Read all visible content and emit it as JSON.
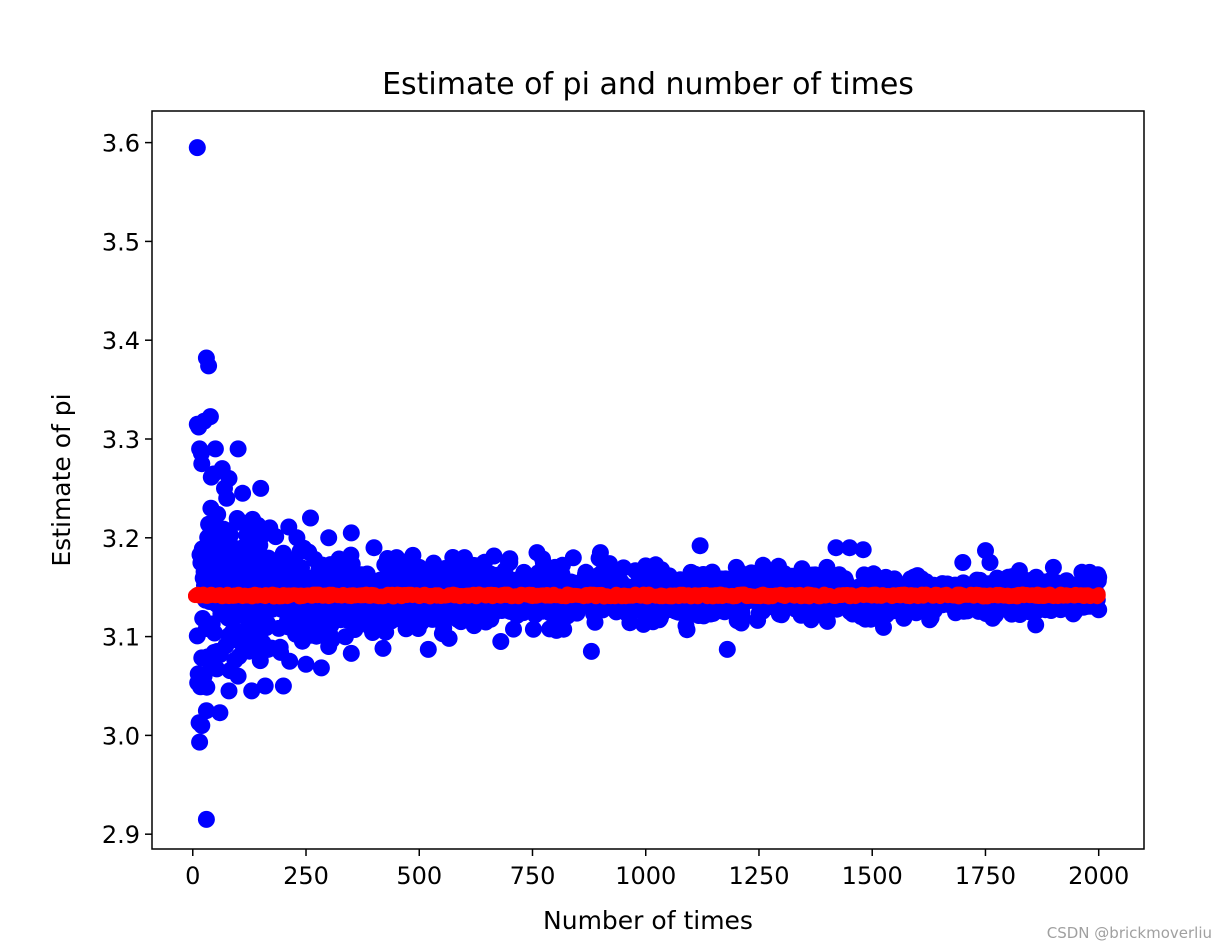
{
  "chart_data": {
    "type": "scatter",
    "title": "Estimate of pi and number of times",
    "xlabel": "Number of times",
    "ylabel": "Estimate of pi",
    "xlim": [
      -90,
      2100
    ],
    "ylim": [
      2.885,
      3.632
    ],
    "xticks": [
      0,
      250,
      500,
      750,
      1000,
      1250,
      1500,
      1750,
      2000
    ],
    "yticks": [
      2.9,
      3.0,
      3.1,
      3.2,
      3.3,
      3.4,
      3.5,
      3.6
    ],
    "yticklabels": [
      "2.9",
      "3.0",
      "3.1",
      "3.2",
      "3.3",
      "3.4",
      "3.5",
      "3.6"
    ],
    "grid": false,
    "series": [
      {
        "color": "#0000ff",
        "marker_size_pt": 6,
        "x": [
          10,
          15,
          20,
          25,
          30,
          35,
          40,
          45,
          50,
          55,
          60,
          65,
          70,
          75,
          80,
          90,
          100,
          110,
          120,
          130,
          150,
          170,
          200,
          230,
          260,
          300,
          350,
          400,
          450,
          500,
          600,
          700,
          800,
          900,
          1000,
          1100,
          1200,
          1300,
          1400,
          1500,
          1600,
          1700,
          1800,
          1900,
          2000,
          10,
          20,
          30,
          40,
          60,
          80,
          100,
          130,
          160,
          200,
          250,
          300,
          350,
          420,
          520,
          680,
          880,
          1180,
          1420,
          1450,
          1480,
          1750,
          1760,
          1980,
          30,
          25,
          15,
          1120,
          760
        ],
        "y": [
          3.595,
          3.315,
          3.275,
          3.318,
          3.382,
          3.374,
          3.23,
          3.21,
          3.29,
          3.18,
          3.175,
          3.27,
          3.25,
          3.24,
          3.26,
          3.19,
          3.29,
          3.245,
          3.18,
          3.2,
          3.25,
          3.21,
          3.18,
          3.2,
          3.22,
          3.2,
          3.205,
          3.19,
          3.18,
          3.17,
          3.18,
          3.175,
          3.17,
          3.185,
          3.17,
          3.165,
          3.17,
          3.16,
          3.17,
          3.16,
          3.16,
          3.175,
          3.16,
          3.17,
          3.16,
          3.315,
          3.01,
          2.915,
          3.07,
          3.023,
          3.045,
          3.06,
          3.045,
          3.05,
          3.05,
          3.072,
          3.09,
          3.083,
          3.088,
          3.087,
          3.095,
          3.085,
          3.087,
          3.19,
          3.19,
          3.188,
          3.187,
          3.175,
          3.165,
          3.025,
          3.06,
          3.29,
          3.192,
          3.185
        ]
      },
      {
        "color": "#ff0000",
        "marker_size_pt": 3,
        "x": [
          5,
          20,
          40,
          60,
          80,
          100,
          120,
          140,
          160,
          180,
          200,
          250,
          300,
          350,
          400,
          450,
          500,
          550,
          600,
          650,
          700,
          750,
          800,
          850,
          900,
          950,
          1000,
          1050,
          1100,
          1150,
          1200,
          1250,
          1300,
          1350,
          1400,
          1450,
          1500,
          1550,
          1600,
          1650,
          1700,
          1750,
          1800,
          1850,
          1900,
          1950,
          2000
        ],
        "y": [
          3.141,
          3.142,
          3.141,
          3.143,
          3.14,
          3.142,
          3.141,
          3.143,
          3.14,
          3.141,
          3.142,
          3.141,
          3.14,
          3.142,
          3.141,
          3.142,
          3.14,
          3.141,
          3.142,
          3.141,
          3.142,
          3.14,
          3.141,
          3.142,
          3.141,
          3.14,
          3.142,
          3.141,
          3.142,
          3.141,
          3.14,
          3.142,
          3.141,
          3.142,
          3.141,
          3.14,
          3.141,
          3.142,
          3.141,
          3.14,
          3.142,
          3.141,
          3.142,
          3.141,
          3.14,
          3.141,
          3.143
        ]
      }
    ]
  },
  "watermark": "CSDN @brickmoverliu"
}
